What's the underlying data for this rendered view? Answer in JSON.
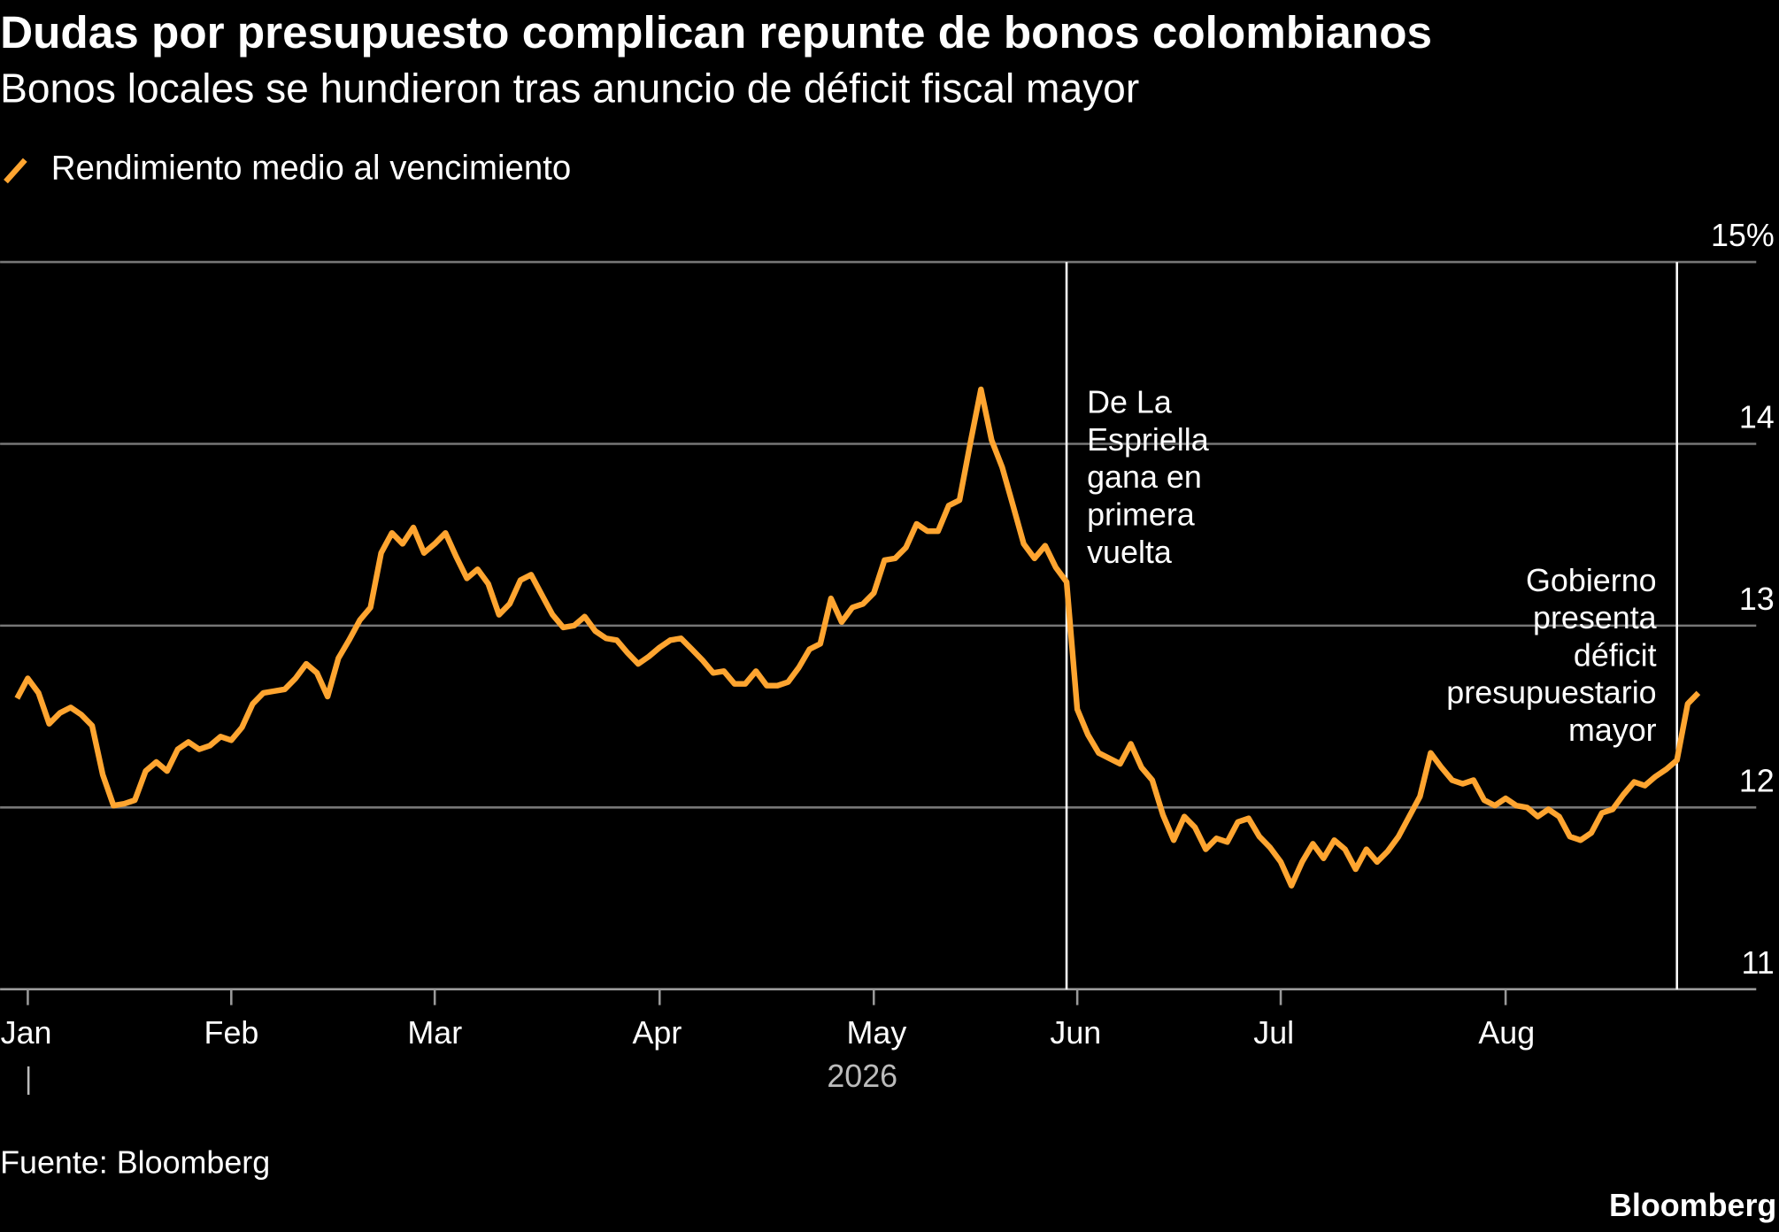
{
  "chart_data": {
    "type": "line",
    "title": "Dudas por presupuesto complican repunte de bonos colombianos",
    "subtitle": "Bonos locales se hundieron tras anuncio de déficit fiscal mayor",
    "x_label": "2026",
    "source": "Fuente: Bloomberg",
    "brand": "Bloomberg",
    "categories": [
      null,
      "Jan",
      null,
      null,
      null,
      null,
      null,
      null,
      null,
      null,
      null,
      null,
      null,
      null,
      null,
      null,
      null,
      null,
      null,
      null,
      "Feb",
      null,
      null,
      null,
      null,
      null,
      null,
      null,
      null,
      null,
      null,
      null,
      null,
      null,
      null,
      null,
      null,
      null,
      null,
      "Mar",
      null,
      null,
      null,
      null,
      null,
      null,
      null,
      null,
      null,
      null,
      null,
      null,
      null,
      null,
      null,
      null,
      null,
      null,
      null,
      null,
      "Apr",
      null,
      null,
      null,
      null,
      null,
      null,
      null,
      null,
      null,
      null,
      null,
      null,
      null,
      null,
      null,
      null,
      null,
      null,
      null,
      "May",
      null,
      null,
      null,
      null,
      null,
      null,
      null,
      null,
      null,
      null,
      null,
      null,
      null,
      null,
      null,
      null,
      null,
      null,
      "Jun",
      null,
      null,
      null,
      null,
      null,
      null,
      null,
      null,
      null,
      null,
      null,
      null,
      null,
      null,
      null,
      null,
      null,
      null,
      "Jul",
      null,
      null,
      null,
      null,
      null,
      null,
      null,
      null,
      null,
      null,
      null,
      null,
      null,
      null,
      null,
      null,
      null,
      null,
      null,
      null,
      "Aug",
      null,
      null,
      null,
      null,
      null,
      null,
      null,
      null,
      null,
      null,
      null,
      null,
      null,
      null,
      null,
      null,
      null,
      null
    ],
    "series": [
      {
        "name": "Rendimiento medio al vencimiento",
        "color": "#ffa530",
        "values": [
          12.6,
          12.71,
          12.63,
          12.46,
          12.52,
          12.55,
          12.51,
          12.45,
          12.18,
          12.01,
          12.02,
          12.04,
          12.2,
          12.25,
          12.2,
          12.32,
          12.36,
          12.32,
          12.34,
          12.39,
          12.37,
          12.44,
          12.57,
          12.63,
          12.64,
          12.65,
          12.71,
          12.79,
          12.74,
          12.61,
          12.82,
          12.92,
          13.03,
          13.1,
          13.4,
          13.51,
          13.45,
          13.54,
          13.4,
          13.45,
          13.51,
          13.38,
          13.26,
          13.31,
          13.23,
          13.06,
          13.12,
          13.25,
          13.28,
          13.17,
          13.06,
          12.99,
          13.0,
          13.05,
          12.97,
          12.93,
          12.92,
          12.85,
          12.79,
          12.83,
          12.88,
          12.92,
          12.93,
          12.87,
          12.81,
          12.74,
          12.75,
          12.68,
          12.68,
          12.75,
          12.67,
          12.67,
          12.69,
          12.77,
          12.87,
          12.9,
          13.15,
          13.02,
          13.1,
          13.12,
          13.18,
          13.36,
          13.37,
          13.43,
          13.56,
          13.52,
          13.52,
          13.66,
          13.69,
          14.0,
          14.3,
          14.02,
          13.87,
          13.66,
          13.45,
          13.37,
          13.44,
          13.32,
          13.24,
          12.54,
          12.4,
          12.3,
          12.27,
          12.24,
          12.35,
          12.22,
          12.15,
          11.96,
          11.82,
          11.95,
          11.89,
          11.77,
          11.83,
          11.81,
          11.92,
          11.94,
          11.84,
          11.78,
          11.7,
          11.57,
          11.7,
          11.8,
          11.72,
          11.82,
          11.77,
          11.66,
          11.77,
          11.7,
          11.76,
          11.84,
          11.95,
          12.06,
          12.3,
          12.22,
          12.15,
          12.13,
          12.15,
          12.04,
          12.01,
          12.05,
          12.01,
          12.0,
          11.95,
          11.99,
          11.95,
          11.84,
          11.82,
          11.86,
          11.97,
          11.99,
          12.07,
          12.14,
          12.12,
          12.17,
          12.21,
          12.26,
          12.57,
          12.63
        ]
      }
    ],
    "ylim": [
      11,
      15
    ],
    "yticks": [
      11,
      12,
      13,
      14,
      {
        "value": 15,
        "label": "15%"
      }
    ],
    "grid": true,
    "legend": "top-left",
    "annotations": [
      {
        "lines": [
          "De La",
          "Espriella",
          "gana en",
          "primera",
          "vuelta"
        ]
      },
      {
        "lines": [
          "Gobierno",
          "presenta",
          "déficit",
          "presupuestario",
          "mayor"
        ]
      }
    ]
  }
}
